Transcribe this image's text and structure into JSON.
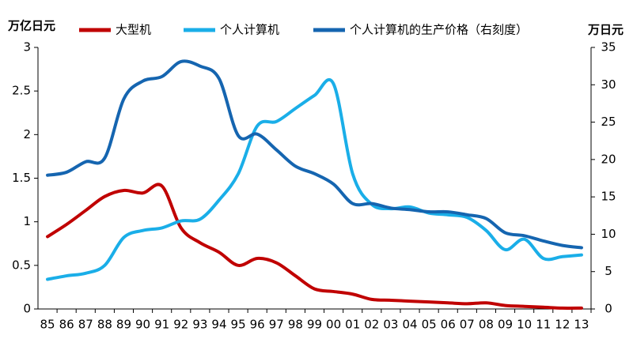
{
  "chart_data": {
    "type": "line",
    "y_label": "万亿日元",
    "y2_label": "万日元",
    "categories": [
      "85",
      "86",
      "87",
      "88",
      "89",
      "90",
      "91",
      "92",
      "93",
      "94",
      "95",
      "96",
      "97",
      "98",
      "99",
      "00",
      "01",
      "02",
      "03",
      "04",
      "05",
      "06",
      "07",
      "08",
      "09",
      "10",
      "11",
      "12",
      "13"
    ],
    "series": [
      {
        "name": "大型机",
        "color": "#c00000",
        "values": [
          0.83,
          0.97,
          1.13,
          1.29,
          1.36,
          1.33,
          1.41,
          0.93,
          0.76,
          0.65,
          0.5,
          0.58,
          0.53,
          0.38,
          0.23,
          0.2,
          0.17,
          0.11,
          0.1,
          0.09,
          0.08,
          0.07,
          0.06,
          0.07,
          0.04,
          0.03,
          0.02,
          0.01,
          0.01
        ]
      },
      {
        "name": "个人计算机",
        "color": "#1aaee8",
        "values": [
          0.34,
          0.38,
          0.41,
          0.5,
          0.82,
          0.9,
          0.93,
          1.01,
          1.03,
          1.25,
          1.55,
          2.1,
          2.15,
          2.3,
          2.45,
          2.58,
          1.55,
          1.2,
          1.15,
          1.17,
          1.1,
          1.08,
          1.05,
          0.9,
          0.68,
          0.8,
          0.58,
          0.6,
          0.62
        ]
      },
      {
        "name": "个人计算机的生产价格（右刻度）",
        "color": "#1565b0",
        "axis": "y2",
        "values": [
          17.9,
          18.3,
          19.7,
          20.2,
          28.1,
          30.5,
          31.1,
          33.1,
          32.5,
          30.8,
          23.2,
          23.4,
          21.3,
          19.1,
          18.1,
          16.7,
          14.1,
          14.1,
          13.5,
          13.3,
          13.0,
          13.0,
          12.6,
          12.1,
          10.2,
          9.8,
          9.1,
          8.5,
          8.2
        ]
      }
    ],
    "ylim": [
      0,
      3
    ],
    "yticks": [
      0,
      0.5,
      1,
      1.5,
      2,
      2.5,
      3
    ],
    "y2lim": [
      0,
      35
    ],
    "y2ticks": [
      0,
      5,
      10,
      15,
      20,
      25,
      30,
      35
    ],
    "grid": false
  }
}
